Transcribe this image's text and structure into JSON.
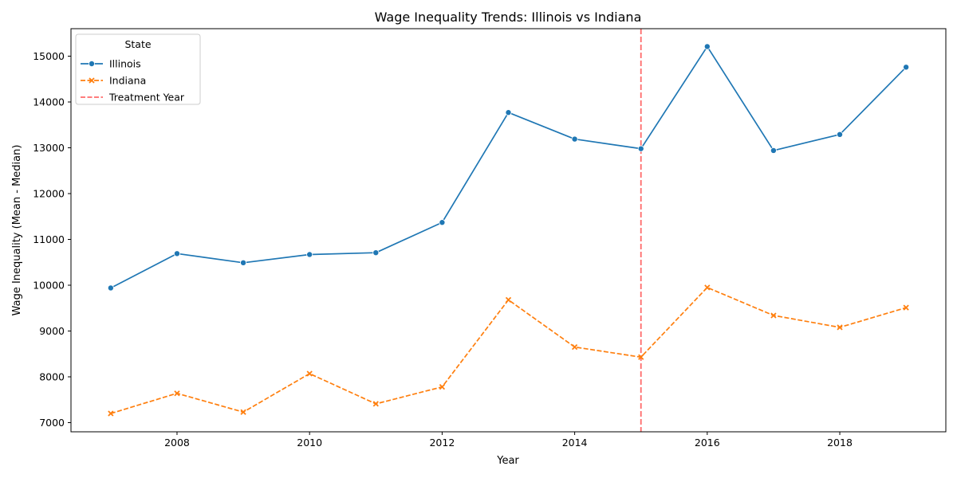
{
  "chart_data": {
    "type": "line",
    "title": "Wage Inequality Trends: Illinois vs Indiana",
    "xlabel": "Year",
    "ylabel": "Wage Inequality (Mean - Median)",
    "x": [
      2007,
      2008,
      2009,
      2010,
      2011,
      2012,
      2013,
      2014,
      2015,
      2016,
      2017,
      2018,
      2019
    ],
    "xlim": [
      2006.4,
      2019.6
    ],
    "ylim": [
      6800,
      15600
    ],
    "xticks": [
      2008,
      2010,
      2012,
      2014,
      2016,
      2018
    ],
    "yticks": [
      7000,
      8000,
      9000,
      10000,
      11000,
      12000,
      13000,
      14000,
      15000
    ],
    "grid": false,
    "legend": {
      "title": "State",
      "placement": "top-left"
    },
    "series": [
      {
        "name": "Illinois",
        "color": "#1f77b4",
        "style": "solid",
        "marker": "circle",
        "values": [
          9940,
          10690,
          10490,
          10670,
          10710,
          11370,
          13770,
          13190,
          12980,
          15210,
          12940,
          13290,
          14760
        ]
      },
      {
        "name": "Indiana",
        "color": "#ff7f0e",
        "style": "dashed",
        "marker": "x",
        "values": [
          7200,
          7640,
          7230,
          8070,
          7410,
          7780,
          9680,
          8650,
          8430,
          9950,
          9340,
          9080,
          9510
        ]
      }
    ],
    "reference_lines": [
      {
        "name": "Treatment Year",
        "orientation": "vertical",
        "x": 2015,
        "color": "#ff6b6b",
        "style": "dashed"
      }
    ]
  }
}
